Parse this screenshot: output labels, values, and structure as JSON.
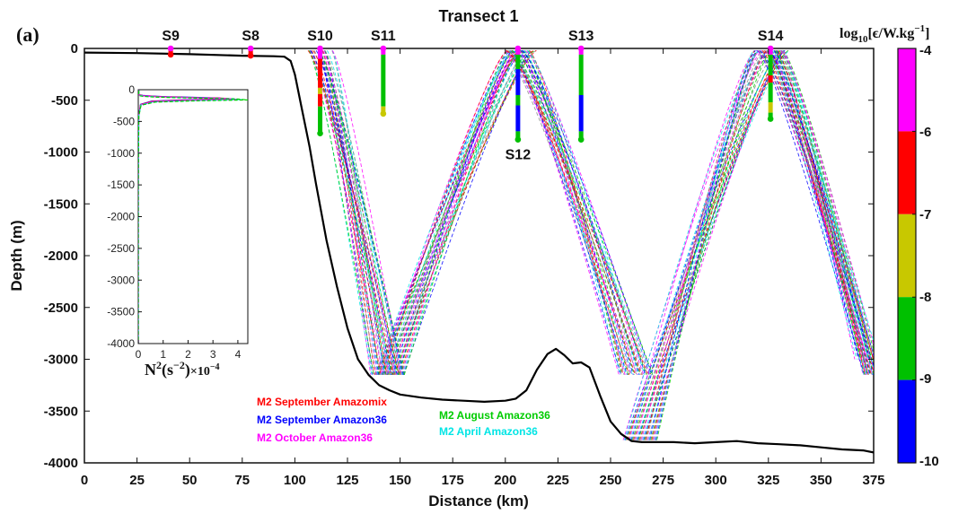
{
  "panel_label": "(a)",
  "colorbar": {
    "title": {
      "base": "log",
      "sub": "10",
      "body": "[ϵ/W.kg",
      "sup": "−1",
      "close": "]"
    },
    "ticks": [
      "-4",
      "-6",
      "-7",
      "-8",
      "-9",
      "-10"
    ],
    "colors": [
      "#ff00ff",
      "#ff0000",
      "#c8c800",
      "#00c000",
      "#0000ff"
    ]
  },
  "inset": {
    "xlabel_main": "N",
    "xlabel_sup": "2",
    "xlabel_units": "(s",
    "xlabel_usup": "−2",
    "xlabel_close": ")",
    "xlabel_mult": "×10",
    "xlabel_msup": "−4",
    "xticks": [
      "0",
      "1",
      "2",
      "3",
      "4"
    ],
    "yticks": [
      "0",
      "-500",
      "-1000",
      "-1500",
      "-2000",
      "-2500",
      "-3000",
      "-3500",
      "-4000"
    ]
  },
  "legend": [
    {
      "text": "M2 September Amazomix",
      "color": "#ff0000"
    },
    {
      "text": "M2 September Amazon36",
      "color": "#0000ff"
    },
    {
      "text": "M2 October Amazon36",
      "color": "#ff00ff"
    },
    {
      "text": "M2 August Amazon36",
      "color": "#00cc00"
    },
    {
      "text": "M2 April Amazon36",
      "color": "#00e5e5"
    }
  ],
  "chart_data": {
    "type": "line",
    "title": "Transect 1",
    "xlabel": "Distance (km)",
    "ylabel": "Depth (m)",
    "xlim": [
      0,
      375
    ],
    "ylim": [
      -4000,
      0
    ],
    "xticks": [
      "0",
      "25",
      "50",
      "75",
      "100",
      "125",
      "150",
      "175",
      "200",
      "225",
      "250",
      "275",
      "300",
      "325",
      "350",
      "375"
    ],
    "yticks": [
      "0",
      "-500",
      "-1000",
      "-1500",
      "-2000",
      "-2500",
      "-3000",
      "-3500",
      "-4000"
    ],
    "bathymetry": {
      "x": [
        0,
        25,
        50,
        75,
        90,
        95,
        98,
        100,
        103,
        107,
        110,
        115,
        120,
        125,
        130,
        135,
        140,
        145,
        150,
        160,
        170,
        180,
        190,
        200,
        205,
        210,
        215,
        220,
        224,
        228,
        232,
        236,
        240,
        245,
        250,
        255,
        260,
        265,
        270,
        280,
        290,
        300,
        310,
        320,
        330,
        340,
        350,
        360,
        370,
        375
      ],
      "y": [
        -40,
        -45,
        -55,
        -70,
        -75,
        -80,
        -120,
        -250,
        -550,
        -950,
        -1300,
        -1850,
        -2300,
        -2700,
        -3000,
        -3150,
        -3250,
        -3300,
        -3340,
        -3370,
        -3390,
        -3400,
        -3410,
        -3400,
        -3380,
        -3300,
        -3100,
        -2950,
        -2900,
        -2960,
        -3040,
        -3030,
        -3080,
        -3350,
        -3600,
        -3720,
        -3790,
        -3800,
        -3800,
        -3800,
        -3810,
        -3800,
        -3790,
        -3810,
        -3820,
        -3830,
        -3850,
        -3870,
        -3880,
        -3900
      ]
    },
    "stations": [
      {
        "name": "S9",
        "x": 41,
        "label_pos": "top",
        "bottom": -60,
        "segments": [
          [
            "#ff00ff",
            0,
            -20
          ],
          [
            "#ff0000",
            -20,
            -60
          ]
        ]
      },
      {
        "name": "S8",
        "x": 79,
        "label_pos": "top",
        "bottom": -70,
        "segments": [
          [
            "#ff00ff",
            0,
            -20
          ],
          [
            "#ff0000",
            -20,
            -70
          ]
        ]
      },
      {
        "name": "S10",
        "x": 112,
        "label_pos": "top",
        "bottom": -820,
        "segments": [
          [
            "#ff00ff",
            0,
            -100
          ],
          [
            "#ff0000",
            -100,
            -380
          ],
          [
            "#c8c800",
            -380,
            -440
          ],
          [
            "#ff0000",
            -440,
            -560
          ],
          [
            "#00c000",
            -560,
            -820
          ]
        ]
      },
      {
        "name": "S11",
        "x": 142,
        "label_pos": "top",
        "bottom": -630,
        "segments": [
          [
            "#ff00ff",
            0,
            -60
          ],
          [
            "#00c000",
            -60,
            -560
          ],
          [
            "#c8c800",
            -560,
            -630
          ]
        ]
      },
      {
        "name": "S12",
        "x": 206,
        "label_pos": "bottom",
        "bottom": -880,
        "segments": [
          [
            "#ff00ff",
            0,
            -60
          ],
          [
            "#00c000",
            -60,
            -200
          ],
          [
            "#0000ff",
            -200,
            -450
          ],
          [
            "#00c000",
            -450,
            -550
          ],
          [
            "#0000ff",
            -550,
            -800
          ],
          [
            "#00c000",
            -800,
            -880
          ]
        ]
      },
      {
        "name": "S13",
        "x": 236,
        "label_pos": "top",
        "bottom": -880,
        "segments": [
          [
            "#ff00ff",
            0,
            -60
          ],
          [
            "#00c000",
            -60,
            -450
          ],
          [
            "#0000ff",
            -450,
            -800
          ],
          [
            "#00c000",
            -800,
            -880
          ]
        ]
      },
      {
        "name": "S14",
        "x": 326,
        "label_pos": "top",
        "bottom": -680,
        "segments": [
          [
            "#ff00ff",
            0,
            -60
          ],
          [
            "#00c000",
            -60,
            -260
          ],
          [
            "#ff0000",
            -260,
            -330
          ],
          [
            "#00c000",
            -330,
            -520
          ],
          [
            "#c8c800",
            -520,
            -620
          ],
          [
            "#00c000",
            -620,
            -680
          ]
        ]
      }
    ],
    "ray_beams": [
      {
        "source_x": 112,
        "descend_to": [
          136,
          152
        ],
        "rise_to": [
          200,
          215
        ],
        "rise_from": [
          138,
          152
        ]
      },
      {
        "source_x": 206,
        "descend_to": [
          254,
          270
        ],
        "rise_to": [
          318,
          335
        ],
        "rise_from": [
          256,
          272
        ]
      },
      {
        "source_x": 326,
        "descend_to": [
          370,
          378
        ]
      }
    ],
    "ray_colors": [
      "#ff00ff",
      "#00e5e5",
      "#0000ff",
      "#00cc00",
      "#ff0000",
      "#888888"
    ],
    "inset_profile": {
      "x": [
        0.02,
        0.02,
        0.05,
        0.2,
        0.6,
        1.3,
        2.5,
        3.6,
        4.0,
        2.0,
        0.6,
        0.1,
        0.02,
        0.0,
        0.0
      ],
      "y": [
        0,
        -60,
        -80,
        -90,
        -100,
        -110,
        -120,
        -130,
        -145,
        -160,
        -180,
        -230,
        -400,
        -1500,
        -4000
      ]
    }
  }
}
